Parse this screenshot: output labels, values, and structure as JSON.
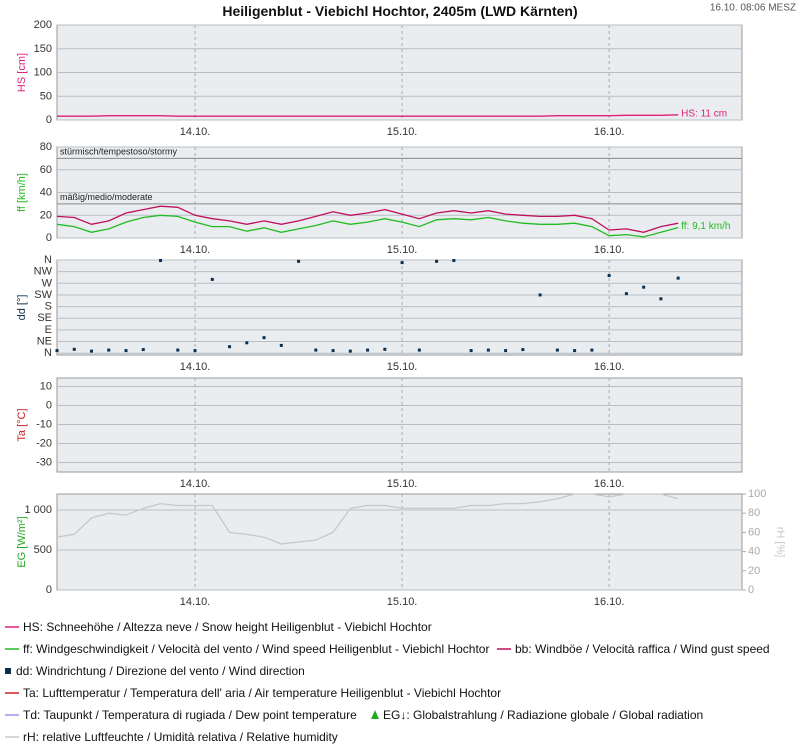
{
  "header": {
    "title": "Heiligenblut - Viebichl Hochtor, 2405m (LWD Kärnten)",
    "timestamp": "16.10. 08:06 MESZ"
  },
  "chart_data": [
    {
      "type": "line",
      "ylabel": "HS [cm]",
      "annotation": "HS: 11 cm",
      "xlim": [
        8,
        87.4
      ],
      "xticks": [
        {
          "value": 24,
          "label": "14.10."
        },
        {
          "value": 48,
          "label": "15.10."
        },
        {
          "value": 72,
          "label": "16.10."
        }
      ],
      "ylim": [
        0,
        200
      ],
      "yticks": [
        0,
        50,
        100,
        150,
        200
      ],
      "x": [
        8,
        10,
        12,
        14,
        16,
        18,
        20,
        22,
        24,
        26,
        28,
        30,
        32,
        34,
        36,
        38,
        40,
        42,
        44,
        46,
        48,
        50,
        52,
        54,
        56,
        58,
        60,
        62,
        64,
        66,
        68,
        70,
        72,
        74,
        76,
        78,
        80
      ],
      "series": [
        {
          "name": "HS: Schneehöhe / Altezza neve / Snow height  Heiligenblut - Viebichl Hochtor",
          "color": "#e0207a",
          "values": [
            8,
            8,
            8,
            9,
            9,
            9,
            9,
            8,
            8,
            8,
            8,
            8,
            8,
            8,
            8,
            8,
            8,
            8,
            8,
            8,
            8,
            8,
            8,
            8,
            8,
            8,
            8,
            8,
            8,
            9,
            9,
            9,
            9,
            10,
            10,
            10,
            11
          ]
        }
      ]
    },
    {
      "type": "line",
      "ylabel": "ff [km/h]",
      "annotation": "ff: 9,1 km/h",
      "xlim": [
        8,
        87.4
      ],
      "xticks": [
        {
          "value": 24,
          "label": "14.10."
        },
        {
          "value": 48,
          "label": "15.10."
        },
        {
          "value": 72,
          "label": "16.10."
        }
      ],
      "ylim": [
        0,
        80
      ],
      "yticks": [
        0,
        20,
        40,
        60,
        80
      ],
      "thresholds": [
        {
          "value": 70,
          "label": "stürmisch/tempestoso/stormy"
        },
        {
          "value": 30,
          "label": "mäßig/medio/moderate"
        }
      ],
      "x": [
        8,
        10,
        12,
        14,
        16,
        18,
        20,
        22,
        24,
        26,
        28,
        30,
        32,
        34,
        36,
        38,
        40,
        42,
        44,
        46,
        48,
        50,
        52,
        54,
        56,
        58,
        60,
        62,
        64,
        66,
        68,
        70,
        72,
        74,
        76,
        78,
        80
      ],
      "series": [
        {
          "name": "ff: Windgeschwindigkeit / Velocità del vento / Wind speed  Heiligenblut - Viebichl Hochtor",
          "color": "#22bb22",
          "values": [
            12,
            10,
            5,
            8,
            14,
            18,
            20,
            19,
            14,
            10,
            10,
            6,
            9,
            5,
            8,
            11,
            15,
            12,
            14,
            17,
            14,
            10,
            16,
            17,
            16,
            18,
            15,
            13,
            12,
            12,
            13,
            10,
            2,
            3,
            1,
            5,
            9.1
          ]
        },
        {
          "name": "bb: Windböe / Velocità raffica / Wind gust speed",
          "color": "#c0105a",
          "values": [
            19,
            18,
            12,
            15,
            22,
            25,
            28,
            27,
            20,
            17,
            15,
            12,
            15,
            12,
            15,
            19,
            23,
            20,
            22,
            25,
            21,
            17,
            22,
            24,
            22,
            24,
            21,
            20,
            19,
            19,
            20,
            17,
            7,
            8,
            5,
            10,
            13
          ]
        }
      ]
    },
    {
      "type": "scatter",
      "ylabel": "dd [°]",
      "xlim": [
        8,
        87.4
      ],
      "xticks": [
        {
          "value": 24,
          "label": "14.10."
        },
        {
          "value": 48,
          "label": "15.10."
        },
        {
          "value": 72,
          "label": "16.10."
        }
      ],
      "ylim": [
        -7,
        360
      ],
      "yticks": [
        {
          "value": 0,
          "label": "N"
        },
        {
          "value": 45,
          "label": "NE"
        },
        {
          "value": 90,
          "label": "E"
        },
        {
          "value": 135,
          "label": "SE"
        },
        {
          "value": 180,
          "label": "S"
        },
        {
          "value": 225,
          "label": "SW"
        },
        {
          "value": 270,
          "label": "W"
        },
        {
          "value": 315,
          "label": "NW"
        },
        {
          "value": 360,
          "label": "N"
        }
      ],
      "x": [
        8,
        10,
        12,
        14,
        16,
        18,
        20,
        22,
        24,
        26,
        28,
        30,
        32,
        34,
        36,
        38,
        40,
        42,
        44,
        46,
        48,
        50,
        52,
        54,
        56,
        58,
        60,
        62,
        64,
        66,
        68,
        70,
        72,
        74,
        76,
        78,
        80
      ],
      "series": [
        {
          "name": "dd: Windrichtung / Direzione del vento / Wind direction",
          "color": "#0a3050",
          "values": [
            10,
            15,
            8,
            12,
            10,
            14,
            358,
            12,
            10,
            285,
            25,
            40,
            60,
            30,
            355,
            12,
            10,
            8,
            12,
            15,
            350,
            12,
            355,
            358,
            10,
            12,
            10,
            14,
            225,
            12,
            10,
            12,
            300,
            230,
            255,
            210,
            290
          ]
        }
      ]
    },
    {
      "type": "line",
      "ylabel": "Ta [°C]",
      "xlim": [
        8,
        87.4
      ],
      "xticks": [
        {
          "value": 24,
          "label": "14.10."
        },
        {
          "value": 48,
          "label": "15.10."
        },
        {
          "value": 72,
          "label": "16.10."
        }
      ],
      "ylim": [
        -35,
        14.5
      ],
      "yticks": [
        -30,
        -20,
        -10,
        0,
        10
      ],
      "series": [
        {
          "name": "Ta: Lufttemperatur / Temperatura dell' aria / Air temperature  Heiligenblut - Viebichl Hochtor",
          "color": "#cc2222"
        },
        {
          "name": "Td: Taupunkt / Temperatura di rugiada / Dew point temperature",
          "color": "#9999ee"
        }
      ]
    },
    {
      "type": "line",
      "ylabel": "EG [W/m²]",
      "y2label": "rH [%]",
      "xlim": [
        8,
        87.4
      ],
      "xticks": [
        {
          "value": 24,
          "label": "14.10."
        },
        {
          "value": 48,
          "label": "15.10."
        },
        {
          "value": 72,
          "label": "16.10."
        }
      ],
      "ylim": [
        0,
        1200
      ],
      "yticks": [
        0,
        500,
        {
          "value": 1000,
          "label": "1 000"
        }
      ],
      "y2lim": [
        0,
        100
      ],
      "y2ticks": [
        0,
        20,
        40,
        60,
        80,
        100
      ],
      "x": [
        8,
        10,
        12,
        14,
        16,
        18,
        20,
        22,
        24,
        26,
        28,
        30,
        32,
        34,
        36,
        38,
        40,
        42,
        44,
        46,
        48,
        50,
        52,
        54,
        56,
        58,
        60,
        62,
        64,
        66,
        68,
        70,
        72,
        74,
        76,
        78,
        80
      ],
      "series": [
        {
          "name": "EG↓: Globalstrahlung / Radiazione globale / Global radiation",
          "color": "#22aa22"
        },
        {
          "name": "rH: relative Luftfeuchte / Umidità relativa / Relative humidity",
          "color": "#c8c8c8",
          "axis": "y2",
          "values": [
            55,
            58,
            75,
            80,
            78,
            85,
            90,
            88,
            88,
            88,
            60,
            58,
            55,
            48,
            50,
            52,
            60,
            85,
            88,
            88,
            85,
            85,
            85,
            85,
            88,
            88,
            90,
            90,
            92,
            95,
            100,
            100,
            97,
            100,
            100,
            100,
            95
          ]
        }
      ]
    }
  ]
}
